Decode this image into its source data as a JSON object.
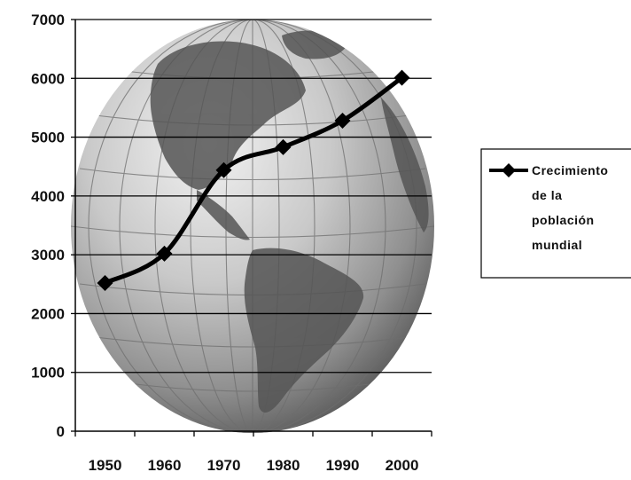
{
  "chart_data": {
    "type": "line",
    "title": "",
    "xlabel": "",
    "ylabel": "",
    "x": [
      "1950",
      "1960",
      "1970",
      "1980",
      "1990",
      "2000"
    ],
    "series": [
      {
        "name_lines": [
          "Crecimiento",
          "de la",
          "población",
          "mundial"
        ],
        "values": [
          2520,
          3020,
          4440,
          4830,
          5280,
          6010
        ],
        "color": "#000000",
        "marker": "diamond"
      }
    ],
    "ylim": [
      0,
      7000
    ],
    "yticks": [
      "0",
      "1000",
      "2000",
      "3000",
      "4000",
      "5000",
      "6000",
      "7000"
    ],
    "grid": "horizontal",
    "legend_position": "right",
    "background_image": "globe-americas-grayscale"
  }
}
